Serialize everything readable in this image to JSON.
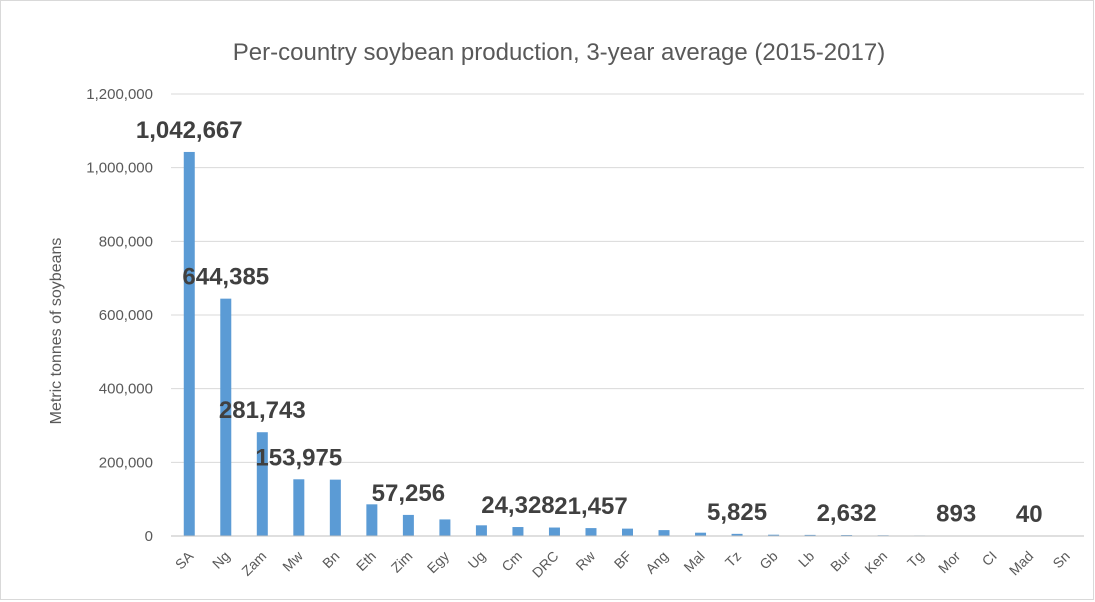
{
  "colors": {
    "bar": "#5b9bd5",
    "text": "#595959",
    "data_label": "#404040",
    "grid": "#d9d9d9"
  },
  "chart_data": {
    "type": "bar",
    "title": "Per-country soybean production, 3-year average (2015-2017)",
    "xlabel": "",
    "ylabel": "Metric tonnes of soybeans",
    "ylim": [
      0,
      1200000
    ],
    "yticks": [
      "0",
      "200,000",
      "400,000",
      "600,000",
      "800,000",
      "1,000,000",
      "1,200,000"
    ],
    "grid": true,
    "legend": "none",
    "categories": [
      "SA",
      "Ng",
      "Zam",
      "Mw",
      "Bn",
      "Eth",
      "Zim",
      "Egy",
      "Ug",
      "Cm",
      "DRC",
      "Rw",
      "BF",
      "Ang",
      "Mal",
      "Tz",
      "Gb",
      "Lb",
      "Bur",
      "Ken",
      "Tg",
      "Mor",
      "CI",
      "Mad",
      "Sn"
    ],
    "values": [
      1042667,
      644385,
      281743,
      153975,
      153000,
      86000,
      57256,
      45000,
      29000,
      24328,
      23000,
      21457,
      20000,
      16000,
      9000,
      5825,
      3500,
      3000,
      2632,
      2000,
      1500,
      893,
      500,
      40,
      20
    ],
    "data_labels": [
      "1,042,667",
      "644,385",
      "281,743",
      "153,975",
      "",
      "",
      "57,256",
      "",
      "",
      "24,328",
      "",
      "21,457",
      "",
      "",
      "",
      "5,825",
      "",
      "",
      "2,632",
      "",
      "",
      "893",
      "",
      "40",
      ""
    ]
  }
}
